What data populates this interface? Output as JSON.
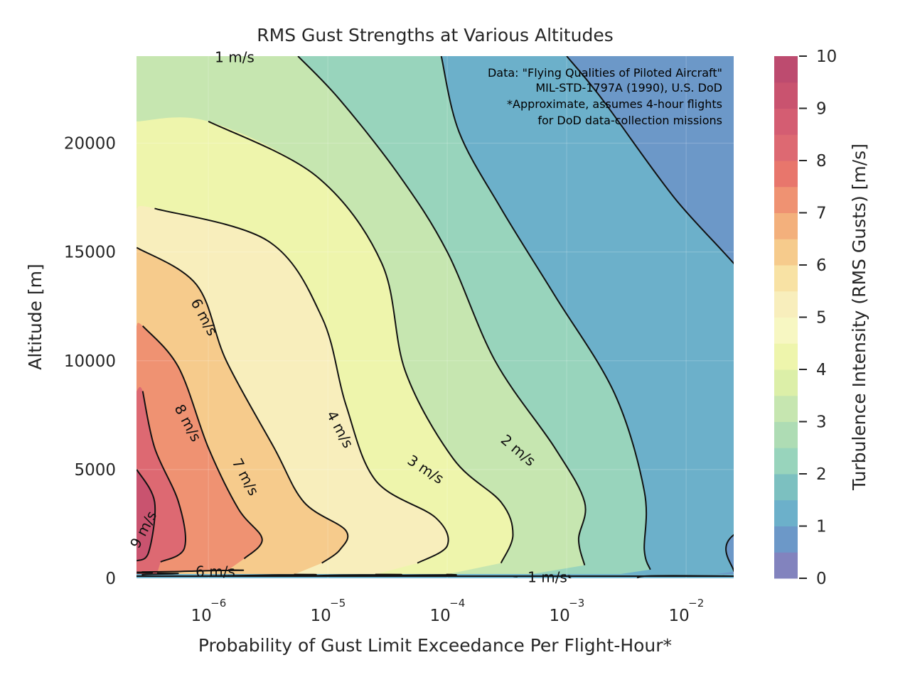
{
  "chart_data": {
    "type": "heatmap",
    "subtype": "filled-contour",
    "title": "RMS Gust Strengths at Various Altitudes",
    "xlabel": "Probability of Gust Limit Exceedance Per Flight-Hour*",
    "ylabel": "Altitude [m]",
    "x_scale": "log",
    "xlim": [
      2.5e-07,
      0.025
    ],
    "ylim": [
      0,
      24000
    ],
    "x_ticks": [
      {
        "value": 1e-06,
        "base": "10",
        "exp": "−6"
      },
      {
        "value": 1e-05,
        "base": "10",
        "exp": "−5"
      },
      {
        "value": 0.0001,
        "base": "10",
        "exp": "−4"
      },
      {
        "value": 0.001,
        "base": "10",
        "exp": "−3"
      },
      {
        "value": 0.01,
        "base": "10",
        "exp": "−2"
      }
    ],
    "y_ticks": [
      0,
      5000,
      10000,
      15000,
      20000
    ],
    "y_tick_labels": [
      "0",
      "5000",
      "10000",
      "15000",
      "20000"
    ],
    "grid": true,
    "annotation": [
      "Data: \"Flying Qualities of Piloted Aircraft\"",
      "MIL-STD-1797A (1990), U.S. DoD",
      "*Approximate, assumes 4-hour flights",
      "for DoD data-collection missions"
    ],
    "colorbar": {
      "label": "Turbulence Intensity (RMS Gusts) [m/s]",
      "range": [
        0,
        10
      ],
      "ticks": [
        0,
        1,
        2,
        3,
        4,
        5,
        6,
        7,
        8,
        9,
        10
      ],
      "tick_labels": [
        "0",
        "1",
        "2",
        "3",
        "4",
        "5",
        "6",
        "7",
        "8",
        "9",
        "10"
      ],
      "level_step": 0.5,
      "colors": [
        "#8283be",
        "#6c98c8",
        "#6cb0ca",
        "#7cc0c0",
        "#98d4bc",
        "#aedcb4",
        "#c6e6b0",
        "#dcefa8",
        "#eef5ac",
        "#f7f7c2",
        "#f8eebc",
        "#f8e2a4",
        "#f6cb8c",
        "#f3b07c",
        "#ef9272",
        "#e8766c",
        "#dd6972",
        "#d45d72",
        "#c9536f",
        "#bd4b6f"
      ]
    },
    "contour_labels": [
      {
        "text": "1 m/s",
        "value": 1
      },
      {
        "text": "1 m/s",
        "value": 1
      },
      {
        "text": "2 m/s",
        "value": 2
      },
      {
        "text": "3 m/s",
        "value": 3
      },
      {
        "text": "4 m/s",
        "value": 4
      },
      {
        "text": "6 m/s",
        "value": 6
      },
      {
        "text": "6 m/s",
        "value": 6
      },
      {
        "text": "7 m/s",
        "value": 7
      },
      {
        "text": "8 m/s",
        "value": 8
      },
      {
        "text": "9 m/s",
        "value": 9
      }
    ],
    "contours": [
      {
        "value": 1,
        "points": [
          [
            -3.0,
            24000
          ],
          [
            -2.7,
            22000
          ],
          [
            -2.1,
            17500
          ],
          [
            -1.4,
            13000
          ],
          [
            -1.45,
            10500
          ],
          [
            -1.2,
            7000
          ],
          [
            -0.7,
            4000
          ],
          [
            -1.6,
            2000
          ],
          [
            -1.6,
            300
          ]
        ]
      },
      {
        "value": 2,
        "points": [
          [
            -4.05,
            24000
          ],
          [
            -3.9,
            20500
          ],
          [
            -3.55,
            17000
          ],
          [
            -3.1,
            13000
          ],
          [
            -2.6,
            8500
          ],
          [
            -2.35,
            4000
          ],
          [
            -2.35,
            1300
          ],
          [
            -2.3,
            400
          ]
        ]
      },
      {
        "value": 3,
        "points": [
          [
            -5.25,
            24000
          ],
          [
            -4.9,
            22000
          ],
          [
            -4.4,
            18500
          ],
          [
            -4.0,
            15000
          ],
          [
            -3.6,
            10000
          ],
          [
            -3.1,
            6000
          ],
          [
            -2.85,
            3500
          ],
          [
            -2.9,
            1800
          ],
          [
            -2.85,
            600
          ]
        ]
      },
      {
        "value": 4,
        "points": [
          [
            -6.0,
            21000
          ],
          [
            -5.1,
            18500
          ],
          [
            -4.55,
            14500
          ],
          [
            -4.35,
            9500
          ],
          [
            -3.95,
            5500
          ],
          [
            -3.55,
            3500
          ],
          [
            -3.45,
            2000
          ],
          [
            -3.55,
            700
          ]
        ]
      },
      {
        "value": 5,
        "points": [
          [
            -6.45,
            17000
          ],
          [
            -5.5,
            15500
          ],
          [
            -5.05,
            12000
          ],
          [
            -4.85,
            8000
          ],
          [
            -4.6,
            4500
          ],
          [
            -4.1,
            2800
          ],
          [
            -4.0,
            1500
          ],
          [
            -4.25,
            700
          ]
        ]
      },
      {
        "value": 6,
        "points": [
          [
            -6.6,
            15200
          ],
          [
            -6.1,
            13500
          ],
          [
            -5.85,
            10000
          ],
          [
            -5.45,
            6000
          ],
          [
            -5.2,
            3500
          ],
          [
            -4.85,
            2200
          ],
          [
            -4.9,
            1300
          ],
          [
            -5.05,
            700
          ]
        ]
      },
      {
        "value": 7,
        "points": [
          [
            -6.55,
            11600
          ],
          [
            -6.25,
            9700
          ],
          [
            -6.0,
            6000
          ],
          [
            -5.75,
            3200
          ],
          [
            -5.55,
            1800
          ],
          [
            -5.7,
            900
          ]
        ]
      },
      {
        "value": 8,
        "points": [
          [
            -6.55,
            8600
          ],
          [
            -6.45,
            6000
          ],
          [
            -6.25,
            3500
          ],
          [
            -6.2,
            1400
          ],
          [
            -6.4,
            750
          ]
        ]
      },
      {
        "value": 9,
        "points": [
          [
            -6.6,
            5000
          ],
          [
            -6.45,
            3500
          ],
          [
            -6.5,
            1200
          ],
          [
            -6.6,
            800
          ]
        ]
      }
    ]
  }
}
